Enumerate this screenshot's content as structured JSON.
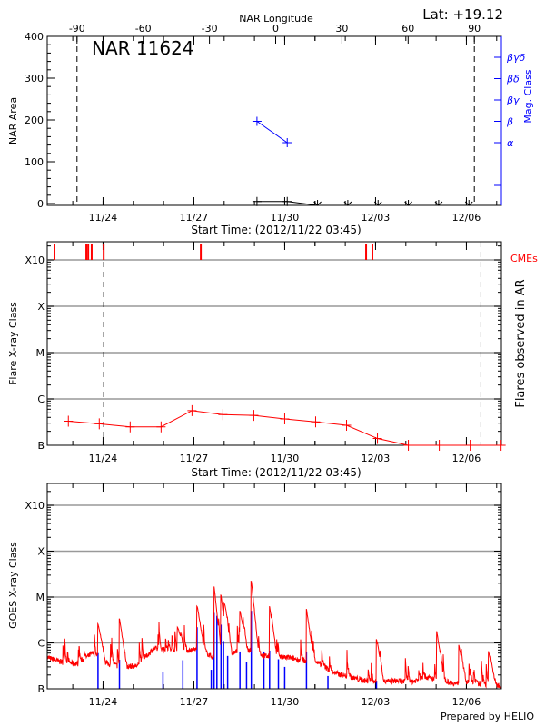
{
  "header": {
    "title": "NAR 11624",
    "lat_label": "Lat: +19.12",
    "footer": "Prepared by HELIO"
  },
  "chart_data": [
    {
      "type": "line",
      "panel": "nar-area",
      "xlabel": "Start Time: (2012/11/22 03:45)",
      "xlim": [
        "11/22 03:45",
        "12/07 03:45"
      ],
      "x_ticks": [
        "11/24",
        "11/27",
        "11/30",
        "12/03",
        "12/06"
      ],
      "top_xlabel": "NAR Longitude",
      "top_ticks": [
        -90,
        -60,
        -30,
        0,
        30,
        60,
        90
      ],
      "limb_longitudes": [
        -90,
        90
      ],
      "ylabel": "NAR Area",
      "ylim": [
        0,
        400
      ],
      "y_ticks": [
        0,
        100,
        200,
        300,
        400
      ],
      "right_ylabel": "Mag. Class",
      "right_ticks": [
        "α",
        "β",
        "βγ",
        "βδ",
        "βγδ"
      ],
      "colors": {
        "area": "#000000",
        "mag_class": "#0000ff"
      },
      "area_series": [
        {
          "time": "11/29 02:00",
          "value": 5
        },
        {
          "time": "11/30 02:00",
          "value": 5
        }
      ],
      "area_missing": [
        "12/01 02:00",
        "12/02 02:00",
        "12/03 02:00",
        "12/04 02:00",
        "12/05 02:00",
        "12/06 02:00"
      ],
      "mag_class_series": [
        {
          "time": "11/29 02:00",
          "value": "β"
        },
        {
          "time": "11/30 02:00",
          "value": "α"
        }
      ]
    },
    {
      "type": "line",
      "panel": "flare-class",
      "xlabel": "Start Time: (2012/11/22 03:45)",
      "xlim": [
        "11/22 03:45",
        "12/07 03:45"
      ],
      "x_ticks": [
        "11/24",
        "11/27",
        "11/30",
        "12/03",
        "12/06"
      ],
      "ylabel": "Flare X-ray Class",
      "right_ylabel": "Flares observed in AR",
      "y_scale": "log",
      "y_ticks": [
        "B",
        "C",
        "M",
        "X",
        "X10"
      ],
      "grid": true,
      "limb_times": [
        "11/24 00:30",
        "12/06 11:30"
      ],
      "cme_label": "CMEs",
      "colors": {
        "flares": "#ff0000",
        "cmes": "#ff0000"
      },
      "flare_series": [
        {
          "time": "11/22 20:30",
          "class": "B3.3"
        },
        {
          "time": "11/23 21:00",
          "class": "B2.9"
        },
        {
          "time": "11/24 21:30",
          "class": "B2.5"
        },
        {
          "time": "11/25 22:00",
          "class": "B2.5"
        },
        {
          "time": "11/26 22:30",
          "class": "B5.6"
        },
        {
          "time": "11/27 23:00",
          "class": "B4.6"
        },
        {
          "time": "11/28 23:30",
          "class": "B4.4"
        },
        {
          "time": "11/30 00:00",
          "class": "B3.7"
        },
        {
          "time": "12/01 00:30",
          "class": "B3.2"
        },
        {
          "time": "12/02 01:00",
          "class": "B2.7"
        },
        {
          "time": "12/03 01:30",
          "class": "B1.4"
        },
        {
          "time": "12/04 02:00",
          "class": "B1.0"
        },
        {
          "time": "12/05 02:30",
          "class": "B1.0"
        },
        {
          "time": "12/06 03:00",
          "class": "B1.0"
        },
        {
          "time": "12/07 03:30",
          "class": "B1.0"
        }
      ],
      "cme_times": [
        "11/22 09:30",
        "11/23 10:45",
        "11/23 12:15",
        "11/23 15:00",
        "11/24 00:30",
        "11/27 05:30",
        "12/02 16:30",
        "12/02 21:30"
      ]
    },
    {
      "type": "line",
      "panel": "goes-xray",
      "xlim": [
        "11/22 03:45",
        "12/07 03:45"
      ],
      "x_ticks": [
        "11/24",
        "11/27",
        "11/30",
        "12/03",
        "12/06"
      ],
      "ylabel": "GOES X-ray Class",
      "y_scale": "log",
      "y_ticks": [
        "B",
        "C",
        "M",
        "X",
        "X10"
      ],
      "grid": true,
      "colors": {
        "goes_flux": "#ff0000",
        "ar_flares": "#0000ff"
      },
      "goes_background": [
        [
          "11/22 03:45",
          "B4.8"
        ],
        [
          "11/22 15:45",
          "B3.8"
        ],
        [
          "11/23 03:45",
          "B3.5"
        ],
        [
          "11/23 15:45",
          "B6.0"
        ],
        [
          "11/24 03:45",
          "B3.5"
        ],
        [
          "11/24 15:45",
          "B3.0"
        ],
        [
          "11/25 03:45",
          "B3.2"
        ],
        [
          "11/25 15:45",
          "B7.5"
        ],
        [
          "11/26 03:45",
          "B7.0"
        ],
        [
          "11/26 15:45",
          "B6.5"
        ],
        [
          "11/27 03:45",
          "B7.5"
        ],
        [
          "11/27 15:45",
          "B4.8"
        ],
        [
          "11/28 03:45",
          "B5.5"
        ],
        [
          "11/28 15:45",
          "B7.5"
        ],
        [
          "11/29 03:45",
          "B5.5"
        ],
        [
          "11/29 15:45",
          "B4.8"
        ],
        [
          "11/30 03:45",
          "B4.8"
        ],
        [
          "11/30 15:45",
          "B4.0"
        ],
        [
          "12/01 03:45",
          "B3.5"
        ],
        [
          "12/01 15:45",
          "B2.2"
        ],
        [
          "12/02 03:45",
          "B1.8"
        ],
        [
          "12/02 15:45",
          "B1.5"
        ],
        [
          "12/03 03:45",
          "B1.4"
        ],
        [
          "12/03 15:45",
          "B1.5"
        ],
        [
          "12/04 03:45",
          "B1.4"
        ],
        [
          "12/04 15:45",
          "B1.8"
        ],
        [
          "12/05 03:45",
          "B1.5"
        ],
        [
          "12/05 15:45",
          "B1.3"
        ],
        [
          "12/06 03:45",
          "B1.4"
        ],
        [
          "12/06 15:45",
          "B1.2"
        ],
        [
          "12/07 03:45",
          "B1.2"
        ]
      ],
      "goes_peaks": [
        [
          "11/23 20:00",
          "C2.6"
        ],
        [
          "11/24 13:00",
          "C3.4"
        ],
        [
          "11/26 11:00",
          "C2.2"
        ],
        [
          "11/27 02:30",
          "C6.3"
        ],
        [
          "11/27 16:00",
          "M1.7"
        ],
        [
          "11/27 21:30",
          "M1.1"
        ],
        [
          "11/28 00:00",
          "C7.5"
        ],
        [
          "11/28 12:30",
          "C5.0"
        ],
        [
          "11/28 21:30",
          "M2.2"
        ],
        [
          "11/29 12:00",
          "C6.3"
        ],
        [
          "11/30 17:15",
          "C5.5"
        ],
        [
          "12/03 00:45",
          "C1.2"
        ],
        [
          "12/05 00:30",
          "C1.8"
        ],
        [
          "12/05 18:00",
          "B9.0"
        ],
        [
          "12/06 17:30",
          "B6.6"
        ]
      ],
      "ar_flare_bars": [
        [
          "11/23 20:00",
          "B6.0"
        ],
        [
          "11/24 13:00",
          "B4.3"
        ],
        [
          "11/25 23:30",
          "B2.3"
        ],
        [
          "11/26 15:15",
          "B4.2"
        ],
        [
          "11/27 02:30",
          "C2.2"
        ],
        [
          "11/27 13:45",
          "B2.6"
        ],
        [
          "11/27 16:00",
          "C4.5"
        ],
        [
          "11/27 18:15",
          "C3.9"
        ],
        [
          "11/27 21:30",
          "C2.5"
        ],
        [
          "11/27 23:30",
          "C1.1"
        ],
        [
          "11/28 02:45",
          "B5.2"
        ],
        [
          "11/28 12:30",
          "B6.5"
        ],
        [
          "11/28 17:45",
          "B3.8"
        ],
        [
          "11/28 21:30",
          "C5.0"
        ],
        [
          "11/29 07:30",
          "B6.5"
        ],
        [
          "11/29 12:00",
          "B6.8"
        ],
        [
          "11/29 19:00",
          "B4.4"
        ],
        [
          "11/30 00:00",
          "B3.0"
        ],
        [
          "11/30 17:15",
          "B6.5"
        ],
        [
          "12/01 10:15",
          "B1.9"
        ],
        [
          "12/03 00:45",
          "B1.5"
        ]
      ]
    }
  ]
}
